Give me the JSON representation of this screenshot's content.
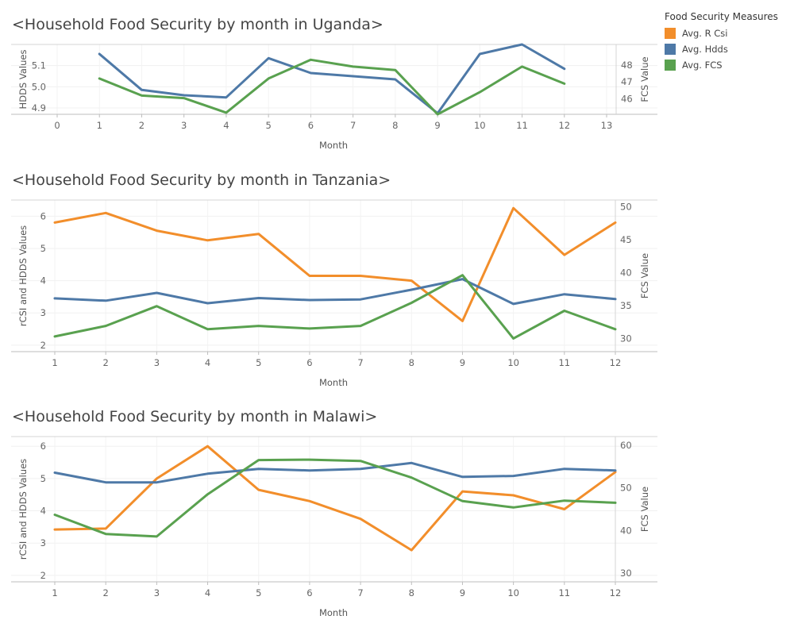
{
  "legend": {
    "title": "Food Security Measures",
    "items": [
      {
        "label": "Avg. R Csi",
        "color": "#F28E2B"
      },
      {
        "label": "Avg. Hdds",
        "color": "#4E79A7"
      },
      {
        "label": "Avg. FCS",
        "color": "#59A14F"
      }
    ]
  },
  "chart_data": [
    {
      "type": "line",
      "title": "<Household Food Security by month in Uganda>",
      "xlabel": "Month",
      "ylabel": "HDDS Values",
      "y2label": "FCS Value",
      "x_ticks": [
        0,
        1,
        2,
        3,
        4,
        5,
        6,
        7,
        8,
        9,
        10,
        11,
        12,
        13
      ],
      "xlim": [
        0,
        13
      ],
      "y_ticks": [
        4.9,
        5.0,
        5.1
      ],
      "y_tick_labels": [
        "4.9",
        "5.0",
        "5.1"
      ],
      "ylim": [
        4.87,
        5.2
      ],
      "y2_ticks": [
        46,
        47,
        48
      ],
      "y2lim": [
        45.1,
        49.2
      ],
      "series": [
        {
          "name": "Avg. Hdds",
          "axis": "left",
          "x": [
            1,
            2,
            3,
            4,
            5,
            6,
            7,
            8,
            9,
            10,
            11,
            12
          ],
          "values": [
            5.155,
            4.985,
            4.96,
            4.95,
            5.135,
            5.065,
            5.05,
            5.035,
            4.875,
            5.155,
            5.2,
            5.085
          ]
        },
        {
          "name": "Avg. FCS",
          "axis": "right",
          "x": [
            1,
            2,
            3,
            4,
            5,
            6,
            7,
            8,
            9,
            10,
            11,
            12
          ],
          "values": [
            47.2,
            46.2,
            46.05,
            45.2,
            47.2,
            48.3,
            47.9,
            47.7,
            45.1,
            46.4,
            47.9,
            46.9
          ]
        }
      ]
    },
    {
      "type": "line",
      "title": "<Household Food Security by month in Tanzania>",
      "xlabel": "Month",
      "ylabel": "rCSI and HDDS Values",
      "y2label": "FCS Value",
      "x_ticks": [
        1,
        2,
        3,
        4,
        5,
        6,
        7,
        8,
        9,
        10,
        11,
        12
      ],
      "xlim": [
        1,
        12
      ],
      "y_ticks": [
        2,
        3,
        4,
        5,
        6
      ],
      "y_tick_labels": [
        "2",
        "3",
        "4",
        "5",
        "6"
      ],
      "ylim": [
        1.8,
        6.5
      ],
      "y2_ticks": [
        30,
        35,
        40,
        45,
        50
      ],
      "y2lim": [
        28,
        51
      ],
      "series": [
        {
          "name": "Avg. R Csi",
          "axis": "left",
          "x": [
            1,
            2,
            3,
            4,
            5,
            6,
            7,
            8,
            9,
            10,
            11,
            12
          ],
          "values": [
            5.8,
            6.1,
            5.55,
            5.25,
            5.45,
            4.15,
            4.15,
            4.0,
            2.75,
            6.25,
            4.8,
            5.8
          ]
        },
        {
          "name": "Avg. Hdds",
          "axis": "left",
          "x": [
            1,
            2,
            3,
            4,
            5,
            6,
            7,
            8,
            9,
            10,
            11,
            12
          ],
          "values": [
            3.45,
            3.38,
            3.62,
            3.3,
            3.46,
            3.4,
            3.42,
            3.72,
            4.05,
            3.28,
            3.58,
            3.43
          ]
        },
        {
          "name": "Avg. FCS",
          "axis": "right",
          "x": [
            1,
            2,
            3,
            4,
            5,
            6,
            7,
            8,
            9,
            10,
            11,
            12
          ],
          "values": [
            30.3,
            31.9,
            34.9,
            31.4,
            31.9,
            31.5,
            31.9,
            35.4,
            39.6,
            30.0,
            34.2,
            31.4
          ]
        }
      ]
    },
    {
      "type": "line",
      "title": "<Household Food Security by month in Malawi>",
      "xlabel": "Month",
      "ylabel": "rCSI and HDDS Values",
      "y2label": "FCS Value",
      "x_ticks": [
        1,
        2,
        3,
        4,
        5,
        6,
        7,
        8,
        9,
        10,
        11,
        12
      ],
      "xlim": [
        1,
        12
      ],
      "y_ticks": [
        2,
        3,
        4,
        5,
        6
      ],
      "y_tick_labels": [
        "2",
        "3",
        "4",
        "5",
        "6"
      ],
      "ylim": [
        1.8,
        6.3
      ],
      "y2_ticks": [
        30,
        40,
        50,
        60
      ],
      "y2lim": [
        28,
        62
      ],
      "series": [
        {
          "name": "Avg. R Csi",
          "axis": "left",
          "x": [
            1,
            2,
            3,
            4,
            5,
            6,
            7,
            8,
            9,
            10,
            11,
            12
          ],
          "values": [
            3.42,
            3.45,
            5.0,
            6.0,
            4.65,
            4.3,
            3.75,
            2.78,
            4.6,
            4.48,
            4.05,
            5.2
          ]
        },
        {
          "name": "Avg. Hdds",
          "axis": "left",
          "x": [
            1,
            2,
            3,
            4,
            5,
            6,
            7,
            8,
            9,
            10,
            11,
            12
          ],
          "values": [
            5.18,
            4.88,
            4.88,
            5.15,
            5.3,
            5.25,
            5.3,
            5.48,
            5.05,
            5.08,
            5.3,
            5.25
          ]
        },
        {
          "name": "Avg. FCS",
          "axis": "right",
          "x": [
            1,
            2,
            3,
            4,
            5,
            6,
            7,
            8,
            9,
            10,
            11,
            12
          ],
          "values": [
            43.7,
            39.2,
            38.6,
            48.5,
            56.5,
            56.6,
            56.3,
            52.4,
            46.9,
            45.4,
            47.0,
            46.5
          ]
        }
      ]
    }
  ]
}
